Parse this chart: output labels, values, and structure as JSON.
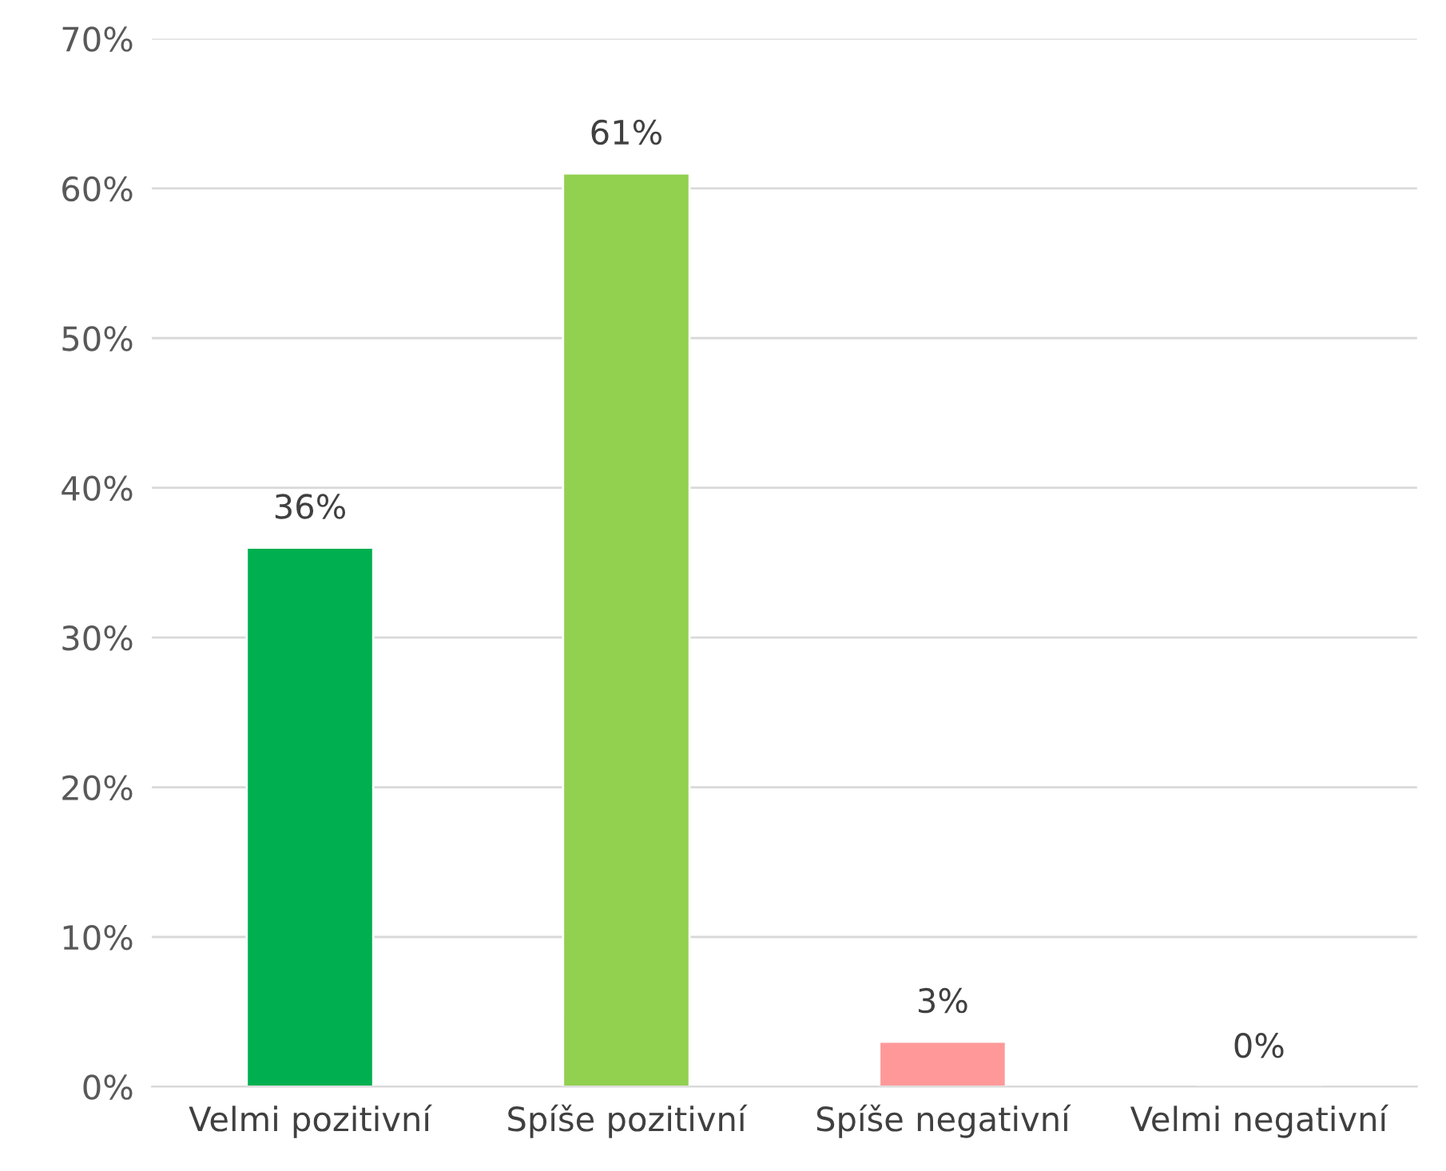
{
  "chart_data": {
    "type": "bar",
    "categories": [
      "Velmi pozitivní",
      "Spíše pozitivní",
      "Spíše negativní",
      "Velmi negativní"
    ],
    "values": [
      36,
      61,
      3,
      0
    ],
    "colors": [
      "#00b050",
      "#92d050",
      "#ff9999",
      null
    ],
    "value_labels": [
      "36%",
      "61%",
      "3%",
      "0%"
    ],
    "ylim": [
      0,
      70
    ],
    "yticks": [
      {
        "value": 0,
        "label": "0%"
      },
      {
        "value": 10,
        "label": "10%"
      },
      {
        "value": 20,
        "label": "20%"
      },
      {
        "value": 30,
        "label": "30%"
      },
      {
        "value": 40,
        "label": "40%"
      },
      {
        "value": 50,
        "label": "50%"
      },
      {
        "value": 60,
        "label": "60%"
      },
      {
        "value": 70,
        "label": "70%"
      }
    ],
    "grid": "y",
    "legend": false
  }
}
